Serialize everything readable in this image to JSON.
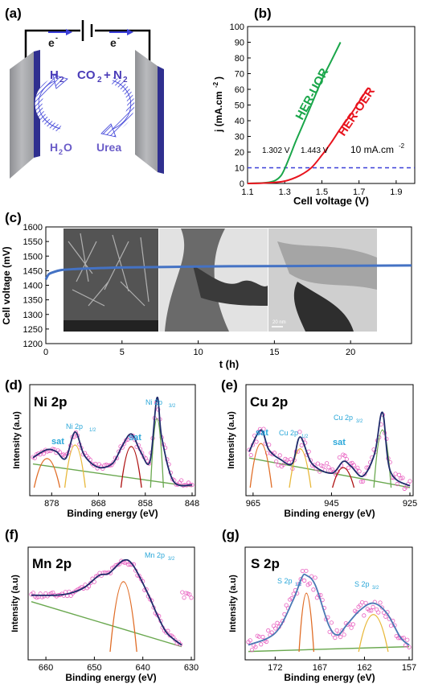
{
  "panels": {
    "a": {
      "label": "(a)",
      "electron_left": "e",
      "electron_right": "e",
      "electron_sup": "-",
      "product_left": "H",
      "product_left_sub": "2",
      "product_right_a": "CO",
      "product_right_a_sub": "2",
      "product_right_plus": "+",
      "product_right_b": "N",
      "product_right_b_sub": "2",
      "reactant_left": "H",
      "reactant_left_sub": "2",
      "reactant_left_tail": "O",
      "reactant_right": "Urea"
    },
    "b": {
      "label": "(b)",
      "ylabel": "j (mA.cm",
      "ylabel_sup": "-2",
      "ylabel_tail": ")",
      "xlabel": "Cell voltage (V)",
      "curve1_label": "HER-UOR",
      "curve2_label": "HER-OER",
      "ann_v1": "1.302 V",
      "ann_v2": "1.443 V",
      "ann_ref": "10 mA.cm",
      "ann_ref_sup": "-2"
    },
    "c": {
      "label": "(c)",
      "ylabel": "Cell voltage (mV)",
      "xlabel": "t (h)",
      "scale_bar": "20 nm"
    },
    "d": {
      "label": "(d)",
      "title": "Ni 2p",
      "peak1": "sat",
      "peak2": "Ni 2p",
      "peak2_sub": "1/2",
      "peak3": "sat",
      "peak4": "Ni 2p",
      "peak4_sub": "3/2",
      "ylabel": "Intensity (a.u)",
      "xlabel": "Binding energy (eV)"
    },
    "e": {
      "label": "(e)",
      "title": "Cu 2p",
      "peak1": "sat",
      "peak2": "Cu 2p",
      "peak2_sub": "1/2",
      "peak3": "sat",
      "peak4": "Cu 2p",
      "peak4_sub": "3/2",
      "ylabel": "Intensity (a.u)",
      "xlabel": "Binding energy (eV)"
    },
    "f": {
      "label": "(f)",
      "title": "Mn 2p",
      "peak1": "Mn 2p",
      "peak1_sub": "3/2",
      "ylabel": "Intensity (a.u)",
      "xlabel": "Binding energy (eV)"
    },
    "g": {
      "label": "(g)",
      "title": "S 2p",
      "peak1": "S 2p",
      "peak1_sub": "1/2",
      "peak2": "S 2p",
      "peak2_sub": "3/2",
      "ylabel": "Intensity (a.u)",
      "xlabel": "Binding energy (eV)"
    }
  },
  "colors": {
    "uor": "#1aa64a",
    "oer": "#e8141e",
    "stability": "#4472c4",
    "scatter": "#e85fc0",
    "fit": "#1f2b6b",
    "baseline": "#6aa84f",
    "peakA": "#e06c25",
    "peakB": "#e8b83a",
    "peakC": "#ad0e0e",
    "label_blue": "#2aa7d9",
    "arrow_blue": "#3b3fd8",
    "electrode": "#a8a9ad"
  },
  "chart_data": [
    {
      "type": "line",
      "panel": "b",
      "xlim": [
        1.1,
        2.0
      ],
      "ylim": [
        0,
        100
      ],
      "xticks": [
        1.1,
        1.3,
        1.5,
        1.7,
        1.9
      ],
      "yticks": [
        0,
        10,
        20,
        30,
        40,
        50,
        60,
        70,
        80,
        90,
        100
      ],
      "series": [
        {
          "name": "HER-UOR",
          "x": [
            1.1,
            1.2,
            1.25,
            1.28,
            1.302,
            1.33,
            1.36,
            1.4,
            1.45,
            1.5,
            1.55,
            1.6
          ],
          "y": [
            0,
            0.5,
            2,
            5,
            10,
            18,
            27,
            38,
            52,
            66,
            78,
            90
          ]
        },
        {
          "name": "HER-OER",
          "x": [
            1.1,
            1.2,
            1.3,
            1.38,
            1.443,
            1.5,
            1.55,
            1.6,
            1.65,
            1.7,
            1.75
          ],
          "y": [
            0,
            0.3,
            1.5,
            5,
            10,
            18,
            26,
            35,
            43,
            52,
            61
          ]
        }
      ],
      "hline": 10
    },
    {
      "type": "line",
      "panel": "c",
      "xlim": [
        0,
        24
      ],
      "ylim": [
        1200,
        1600
      ],
      "xticks": [
        0,
        5,
        10,
        15,
        20
      ],
      "yticks": [
        1200,
        1250,
        1300,
        1350,
        1400,
        1450,
        1500,
        1550,
        1600
      ],
      "series": [
        {
          "x": [
            0,
            0.2,
            0.5,
            1,
            2,
            3,
            5,
            8,
            12,
            16,
            20,
            24
          ],
          "y": [
            1420,
            1438,
            1445,
            1452,
            1456,
            1458,
            1461,
            1463,
            1465,
            1466,
            1467,
            1468
          ]
        }
      ]
    },
    {
      "type": "line",
      "panel": "d",
      "xlim": [
        882,
        848
      ],
      "xticks": [
        878,
        868,
        858,
        848
      ],
      "series": [
        {
          "name": "fit",
          "x": [
            882,
            879,
            877,
            875,
            873,
            871,
            868,
            865,
            863,
            861,
            859,
            857,
            855.5,
            854.5,
            852,
            848
          ],
          "y": [
            0.34,
            0.42,
            0.4,
            0.33,
            0.6,
            0.36,
            0.24,
            0.28,
            0.45,
            0.58,
            0.4,
            0.3,
            0.95,
            0.55,
            0.1,
            0.06
          ]
        }
      ]
    },
    {
      "type": "line",
      "panel": "e",
      "xlim": [
        966,
        925
      ],
      "xticks": [
        965,
        945,
        925
      ],
      "series": [
        {
          "name": "fit",
          "x": [
            966,
            963,
            961,
            958,
            955,
            953,
            950,
            945,
            942,
            940,
            937,
            934,
            932,
            930,
            925
          ],
          "y": [
            0.4,
            0.62,
            0.42,
            0.32,
            0.28,
            0.55,
            0.28,
            0.18,
            0.3,
            0.25,
            0.15,
            0.38,
            0.8,
            0.2,
            0.05
          ]
        }
      ]
    },
    {
      "type": "line",
      "panel": "f",
      "xlim": [
        663,
        630
      ],
      "xticks": [
        660,
        650,
        640,
        630
      ],
      "series": [
        {
          "name": "fit",
          "x": [
            663,
            658,
            655,
            652,
            649,
            647,
            644,
            642,
            639,
            637,
            635,
            632
          ],
          "y": [
            0.6,
            0.6,
            0.62,
            0.68,
            0.8,
            0.82,
            0.95,
            0.9,
            0.62,
            0.4,
            0.22,
            0.1
          ]
        }
      ]
    },
    {
      "type": "line",
      "panel": "g",
      "xlim": [
        175,
        157
      ],
      "xticks": [
        172,
        167,
        162,
        157
      ],
      "series": [
        {
          "name": "fit",
          "x": [
            175,
            172,
            170,
            169,
            168.5,
            167.5,
            166,
            165,
            164,
            162.5,
            161,
            159.5,
            158,
            157
          ],
          "y": [
            0.1,
            0.22,
            0.55,
            0.78,
            0.8,
            0.7,
            0.3,
            0.2,
            0.3,
            0.45,
            0.52,
            0.42,
            0.18,
            0.1
          ]
        }
      ]
    }
  ]
}
